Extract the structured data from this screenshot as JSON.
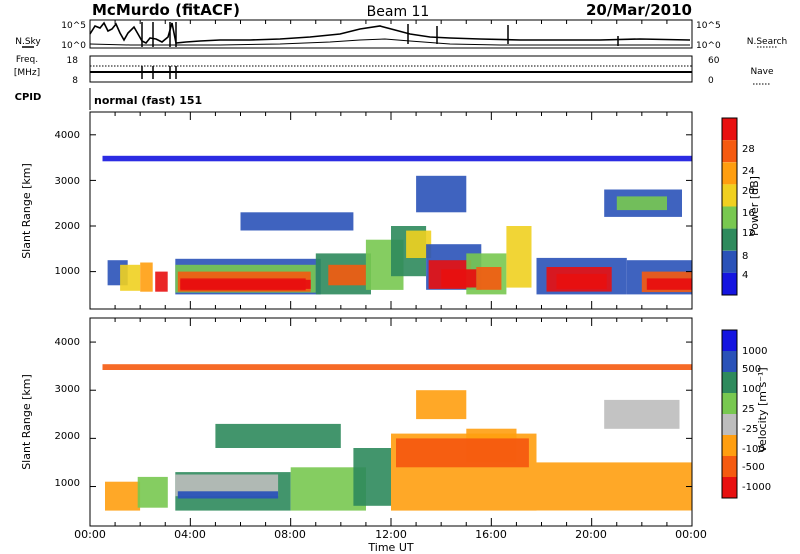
{
  "header": {
    "station": "McMurdo (fitACF)",
    "beam": "Beam 11",
    "date": "20/Mar/2010"
  },
  "top_panels": {
    "nsky_label": "N.Sky",
    "nsearch_label": "N.Search",
    "noise_ticks": [
      "10^5",
      "10^0"
    ],
    "freq_label_1": "Freq.",
    "freq_label_2": "[MHz]",
    "freq_ticks": [
      "18",
      "8"
    ],
    "nave_label": "Nave",
    "nave_ticks": [
      "60",
      "0"
    ],
    "cpid_label": "CPID",
    "cpid_value": "normal (fast) 151"
  },
  "colors": {
    "power": [
      "#1515e0",
      "#2a52b8",
      "#2e8a5c",
      "#78c850",
      "#f0d020",
      "#ff9e10",
      "#f55a10",
      "#e81010"
    ],
    "velocity": [
      "#e81010",
      "#f55a10",
      "#ff9e10",
      "#bdbdbd",
      "#78c850",
      "#2e8a5c",
      "#2a52b8",
      "#1515e0"
    ]
  },
  "chart_data": [
    {
      "type": "heatmap",
      "name": "power",
      "xlabel": "",
      "ylabel": "Slant Range [km]",
      "xlim": [
        0,
        24
      ],
      "ylim": [
        180,
        4500
      ],
      "yticks": [
        "1000",
        "2000",
        "3000",
        "4000"
      ],
      "colorbar_label": "Power [dB]",
      "colorbar_ticks": [
        "4",
        "8",
        "12",
        "16",
        "20",
        "24",
        "28"
      ],
      "blocks": [
        {
          "t0": 0.7,
          "t1": 1.5,
          "r0": 700,
          "r1": 1250,
          "l": 1
        },
        {
          "t0": 1.2,
          "t1": 2.0,
          "r0": 580,
          "r1": 1150,
          "l": 4
        },
        {
          "t0": 2.0,
          "t1": 2.5,
          "r0": 560,
          "r1": 1200,
          "l": 5
        },
        {
          "t0": 2.6,
          "t1": 3.1,
          "r0": 560,
          "r1": 1000,
          "l": 7
        },
        {
          "t0": 3.4,
          "t1": 9.2,
          "r0": 500,
          "r1": 1280,
          "l": 1
        },
        {
          "t0": 3.4,
          "t1": 9.0,
          "r0": 540,
          "r1": 1150,
          "l": 3
        },
        {
          "t0": 3.5,
          "t1": 8.8,
          "r0": 560,
          "r1": 1000,
          "l": 6
        },
        {
          "t0": 3.6,
          "t1": 8.6,
          "r0": 590,
          "r1": 850,
          "l": 7
        },
        {
          "t0": 9.0,
          "t1": 11.2,
          "r0": 500,
          "r1": 1400,
          "l": 2
        },
        {
          "t0": 9.5,
          "t1": 11.0,
          "r0": 700,
          "r1": 1150,
          "l": 6
        },
        {
          "t0": 11.0,
          "t1": 12.5,
          "r0": 600,
          "r1": 1700,
          "l": 3
        },
        {
          "t0": 12.0,
          "t1": 13.4,
          "r0": 900,
          "r1": 2000,
          "l": 2
        },
        {
          "t0": 12.6,
          "t1": 13.6,
          "r0": 1300,
          "r1": 1900,
          "l": 4
        },
        {
          "t0": 13.4,
          "t1": 15.6,
          "r0": 600,
          "r1": 1600,
          "l": 1
        },
        {
          "t0": 13.5,
          "t1": 15.2,
          "r0": 620,
          "r1": 1250,
          "l": 7
        },
        {
          "t0": 15.0,
          "t1": 16.6,
          "r0": 500,
          "r1": 1400,
          "l": 3
        },
        {
          "t0": 15.4,
          "t1": 16.4,
          "r0": 600,
          "r1": 1100,
          "l": 6
        },
        {
          "t0": 16.6,
          "t1": 17.6,
          "r0": 650,
          "r1": 2000,
          "l": 4
        },
        {
          "t0": 17.8,
          "t1": 21.4,
          "r0": 500,
          "r1": 1300,
          "l": 1
        },
        {
          "t0": 18.2,
          "t1": 20.8,
          "r0": 560,
          "r1": 1100,
          "l": 7
        },
        {
          "t0": 21.4,
          "t1": 24.0,
          "r0": 500,
          "r1": 1250,
          "l": 1
        },
        {
          "t0": 22.0,
          "t1": 24.0,
          "r0": 550,
          "r1": 1000,
          "l": 6
        },
        {
          "t0": 20.5,
          "t1": 23.6,
          "r0": 2200,
          "r1": 2800,
          "l": 1
        },
        {
          "t0": 21.0,
          "t1": 23.0,
          "r0": 2350,
          "r1": 2650,
          "l": 3
        },
        {
          "t0": 13.0,
          "t1": 15.0,
          "r0": 2300,
          "r1": 3100,
          "l": 1
        },
        {
          "t0": 0.5,
          "t1": 24.0,
          "r0": 3420,
          "r1": 3540,
          "l": 0
        },
        {
          "t0": 6.0,
          "t1": 10.5,
          "r0": 1900,
          "r1": 2300,
          "l": 1
        }
      ],
      "overlays": [
        {
          "t0": 3.6,
          "t1": 8.8,
          "r0": 620,
          "r1": 820,
          "l": 7
        },
        {
          "t0": 14.0,
          "t1": 15.4,
          "r0": 650,
          "r1": 1050,
          "l": 7
        },
        {
          "t0": 18.6,
          "t1": 20.6,
          "r0": 620,
          "r1": 950,
          "l": 7
        },
        {
          "t0": 22.2,
          "t1": 24.0,
          "r0": 600,
          "r1": 850,
          "l": 7
        }
      ]
    },
    {
      "type": "heatmap",
      "name": "velocity",
      "xlabel": "Time UT",
      "ylabel": "Slant Range [km]",
      "xlim": [
        0,
        24
      ],
      "ylim": [
        180,
        4500
      ],
      "xticks": [
        "00:00",
        "04:00",
        "08:00",
        "12:00",
        "16:00",
        "20:00",
        "00:00"
      ],
      "yticks": [
        "1000",
        "2000",
        "3000",
        "4000"
      ],
      "colorbar_label": "Velocity [m s⁻¹]",
      "colorbar_ticks": [
        "1000",
        "500",
        "100",
        "25",
        "-25",
        "-100",
        "-500",
        "-1000"
      ],
      "blocks": [
        {
          "t0": 0.6,
          "t1": 2.0,
          "r0": 500,
          "r1": 1100,
          "l": 2
        },
        {
          "t0": 1.9,
          "t1": 3.1,
          "r0": 560,
          "r1": 1200,
          "l": 4
        },
        {
          "t0": 3.4,
          "t1": 8.0,
          "r0": 500,
          "r1": 1300,
          "l": 5
        },
        {
          "t0": 3.4,
          "t1": 7.5,
          "r0": 800,
          "r1": 1250,
          "l": 3
        },
        {
          "t0": 8.0,
          "t1": 11.0,
          "r0": 500,
          "r1": 1400,
          "l": 4
        },
        {
          "t0": 10.5,
          "t1": 12.0,
          "r0": 600,
          "r1": 1800,
          "l": 5
        },
        {
          "t0": 12.0,
          "t1": 17.8,
          "r0": 500,
          "r1": 2100,
          "l": 2
        },
        {
          "t0": 15.0,
          "t1": 17.0,
          "r0": 1500,
          "r1": 2200,
          "l": 2
        },
        {
          "t0": 17.8,
          "t1": 24.0,
          "r0": 500,
          "r1": 1500,
          "l": 2
        },
        {
          "t0": 20.5,
          "t1": 23.5,
          "r0": 2200,
          "r1": 2800,
          "l": 3
        },
        {
          "t0": 13.0,
          "t1": 15.0,
          "r0": 2400,
          "r1": 3000,
          "l": 2
        },
        {
          "t0": 0.5,
          "t1": 24.0,
          "r0": 3420,
          "r1": 3540,
          "l": 1
        },
        {
          "t0": 5.0,
          "t1": 10.0,
          "r0": 1800,
          "r1": 2300,
          "l": 5
        }
      ],
      "overlays": [
        {
          "t0": 12.2,
          "t1": 17.5,
          "r0": 1400,
          "r1": 2000,
          "l": 1
        },
        {
          "t0": 3.5,
          "t1": 7.5,
          "r0": 750,
          "r1": 900,
          "l": 6
        }
      ]
    }
  ]
}
